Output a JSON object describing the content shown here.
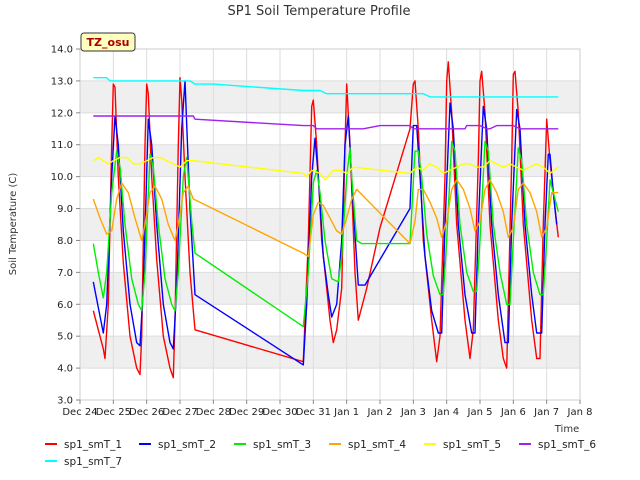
{
  "chart_data": {
    "type": "line",
    "title": "SP1 Soil Temperature Profile",
    "xlabel": "Time",
    "ylabel": "Soil Temperature (C)",
    "badge": "TZ_osu",
    "ylim": [
      3.0,
      14.0
    ],
    "yticks": [
      3.0,
      4.0,
      5.0,
      6.0,
      7.0,
      8.0,
      9.0,
      10.0,
      11.0,
      12.0,
      13.0,
      14.0
    ],
    "ytick_labels": [
      "3.0",
      "4.0",
      "5.0",
      "6.0",
      "7.0",
      "8.0",
      "9.0",
      "10.0",
      "11.0",
      "12.0",
      "13.0",
      "14.0"
    ],
    "xlim": [
      0,
      15
    ],
    "xticks": [
      0,
      1,
      2,
      3,
      4,
      5,
      6,
      7,
      8,
      9,
      10,
      11,
      12,
      13,
      14,
      15
    ],
    "xtick_labels": [
      "Dec 24",
      "Dec 25",
      "Dec 26",
      "Dec 27",
      "Dec 28",
      "Dec 29",
      "Dec 30",
      "Dec 31",
      "Jan 1",
      "Jan 2",
      "Jan 3",
      "Jan 4",
      "Jan 5",
      "Jan 6",
      "Jan 7",
      "Jan 8"
    ],
    "grid": true,
    "legend_position": "bottom",
    "series": [
      {
        "name": "sp1_smT_1",
        "color": "#ff0000",
        "x": [
          0.4,
          0.55,
          0.7,
          0.75,
          0.85,
          0.95,
          1.0,
          1.05,
          1.15,
          1.3,
          1.5,
          1.7,
          1.8,
          1.85,
          1.95,
          2.0,
          2.05,
          2.15,
          2.3,
          2.5,
          2.7,
          2.8,
          2.85,
          2.95,
          3.0,
          3.05,
          3.15,
          3.3,
          3.45,
          6.7,
          6.85,
          6.95,
          7.0,
          7.1,
          7.25,
          7.4,
          7.5,
          7.6,
          7.7,
          7.85,
          7.95,
          8.0,
          8.1,
          8.25,
          8.35,
          8.6,
          9.0,
          9.9,
          10.0,
          10.05,
          10.15,
          10.3,
          10.55,
          10.7,
          10.8,
          10.95,
          11.0,
          11.05,
          11.15,
          11.3,
          11.55,
          11.7,
          11.8,
          11.95,
          12.0,
          12.05,
          12.15,
          12.3,
          12.55,
          12.7,
          12.8,
          12.95,
          13.0,
          13.05,
          13.15,
          13.3,
          13.55,
          13.7,
          13.8,
          13.9,
          14.0,
          14.1,
          14.25,
          14.35
        ],
        "y": [
          5.8,
          5.2,
          4.6,
          4.3,
          6.0,
          11.0,
          12.9,
          12.8,
          10.0,
          7.3,
          5.0,
          4.0,
          3.8,
          5.0,
          11.0,
          12.9,
          12.6,
          10.0,
          7.4,
          5.0,
          4.0,
          3.7,
          5.5,
          11.0,
          13.1,
          12.4,
          10.0,
          7.0,
          5.2,
          4.2,
          8.0,
          12.2,
          12.4,
          11.0,
          8.0,
          6.5,
          5.5,
          4.8,
          5.2,
          6.5,
          11.0,
          12.9,
          11.0,
          7.0,
          5.5,
          6.5,
          8.4,
          11.5,
          12.9,
          13.0,
          11.5,
          8.0,
          5.5,
          4.2,
          5.0,
          10.0,
          13.0,
          13.6,
          12.0,
          8.5,
          5.5,
          4.3,
          5.2,
          10.5,
          13.0,
          13.3,
          12.0,
          8.5,
          5.5,
          4.3,
          4.0,
          10.5,
          13.2,
          13.3,
          12.0,
          8.5,
          5.5,
          4.3,
          4.3,
          8.5,
          11.8,
          10.5,
          9.0,
          8.1
        ]
      },
      {
        "name": "sp1_smT_2",
        "color": "#0000ff",
        "x": [
          0.4,
          0.55,
          0.7,
          0.8,
          0.95,
          1.05,
          1.15,
          1.3,
          1.5,
          1.7,
          1.8,
          1.9,
          2.05,
          2.15,
          2.3,
          2.5,
          2.7,
          2.8,
          2.9,
          3.05,
          3.15,
          3.3,
          3.45,
          6.7,
          6.8,
          6.95,
          7.05,
          7.15,
          7.3,
          7.45,
          7.55,
          7.7,
          7.85,
          7.95,
          8.05,
          8.2,
          8.35,
          8.55,
          9.9,
          10.0,
          10.1,
          10.2,
          10.35,
          10.55,
          10.75,
          10.85,
          10.95,
          11.1,
          11.2,
          11.35,
          11.55,
          11.75,
          11.85,
          11.95,
          12.1,
          12.2,
          12.35,
          12.55,
          12.75,
          12.85,
          12.95,
          13.1,
          13.2,
          13.35,
          13.55,
          13.7,
          13.85,
          13.95,
          14.05,
          14.1,
          14.2,
          14.3
        ],
        "y": [
          6.7,
          5.9,
          5.1,
          6.0,
          10.0,
          11.9,
          11.0,
          8.3,
          6.0,
          4.8,
          4.7,
          6.5,
          11.8,
          11.0,
          8.5,
          6.0,
          4.8,
          4.6,
          6.5,
          11.5,
          13.0,
          9.0,
          6.3,
          4.1,
          6.0,
          10.0,
          11.2,
          10.0,
          7.5,
          6.3,
          5.6,
          6.0,
          8.0,
          11.0,
          11.9,
          9.0,
          6.6,
          6.6,
          9.0,
          11.6,
          11.6,
          10.0,
          7.5,
          5.8,
          5.1,
          5.1,
          8.5,
          12.3,
          11.5,
          8.5,
          6.3,
          5.1,
          5.1,
          8.5,
          12.2,
          11.5,
          8.5,
          6.3,
          4.8,
          4.8,
          8.5,
          12.1,
          11.5,
          8.5,
          6.3,
          5.1,
          5.1,
          8.5,
          10.7,
          10.7,
          9.5,
          8.5
        ]
      },
      {
        "name": "sp1_smT_3",
        "color": "#00ee00",
        "x": [
          0.4,
          0.55,
          0.7,
          0.8,
          0.95,
          1.1,
          1.2,
          1.35,
          1.55,
          1.75,
          1.85,
          1.95,
          2.1,
          2.2,
          2.35,
          2.55,
          2.75,
          2.85,
          2.95,
          3.1,
          3.2,
          3.35,
          3.45,
          6.7,
          6.85,
          7.0,
          7.1,
          7.2,
          7.35,
          7.55,
          7.75,
          7.85,
          8.0,
          8.1,
          8.15,
          8.3,
          8.45,
          9.9,
          10.05,
          10.15,
          10.25,
          10.4,
          10.6,
          10.8,
          10.9,
          11.0,
          11.15,
          11.25,
          11.4,
          11.6,
          11.8,
          11.9,
          12.0,
          12.15,
          12.25,
          12.4,
          12.6,
          12.8,
          12.9,
          13.0,
          13.15,
          13.25,
          13.4,
          13.6,
          13.8,
          13.9,
          14.0,
          14.1,
          14.2,
          14.35
        ],
        "y": [
          7.9,
          7.0,
          6.2,
          7.0,
          9.5,
          10.8,
          10.3,
          8.5,
          6.8,
          6.0,
          5.8,
          7.0,
          10.7,
          10.3,
          8.5,
          6.8,
          6.0,
          5.8,
          7.0,
          10.0,
          10.6,
          8.6,
          7.6,
          5.3,
          7.0,
          9.8,
          10.2,
          9.5,
          8.0,
          6.8,
          6.7,
          7.5,
          10.0,
          10.9,
          10.0,
          8.0,
          7.9,
          7.9,
          10.8,
          10.8,
          10.0,
          8.2,
          6.9,
          6.3,
          6.3,
          8.0,
          11.1,
          10.8,
          8.5,
          7.0,
          6.4,
          6.4,
          8.0,
          11.1,
          10.8,
          8.5,
          7.0,
          6.0,
          6.0,
          8.0,
          10.9,
          10.5,
          8.5,
          7.0,
          6.3,
          6.3,
          8.0,
          9.9,
          9.5,
          8.9
        ]
      },
      {
        "name": "sp1_smT_4",
        "color": "#ffa500",
        "x": [
          0.4,
          0.6,
          0.8,
          0.95,
          1.1,
          1.25,
          1.45,
          1.65,
          1.85,
          1.95,
          2.1,
          2.25,
          2.45,
          2.65,
          2.85,
          2.95,
          3.1,
          3.25,
          3.4,
          6.7,
          6.85,
          7.0,
          7.15,
          7.3,
          7.5,
          7.7,
          7.85,
          8.0,
          8.15,
          8.3,
          9.9,
          10.05,
          10.15,
          10.3,
          10.5,
          10.7,
          10.85,
          11.0,
          11.15,
          11.3,
          11.5,
          11.7,
          11.85,
          12.0,
          12.15,
          12.3,
          12.5,
          12.7,
          12.85,
          13.0,
          13.15,
          13.3,
          13.5,
          13.7,
          13.85,
          14.0,
          14.15,
          14.35
        ],
        "y": [
          9.3,
          8.7,
          8.2,
          8.3,
          9.3,
          9.8,
          9.5,
          8.7,
          8.0,
          8.5,
          9.5,
          9.7,
          9.3,
          8.5,
          8.0,
          8.5,
          9.5,
          9.7,
          9.3,
          7.6,
          7.5,
          8.8,
          9.2,
          9.1,
          8.7,
          8.3,
          8.2,
          8.7,
          9.3,
          9.6,
          7.9,
          8.6,
          9.6,
          9.6,
          9.2,
          8.7,
          8.1,
          8.6,
          9.6,
          9.9,
          9.6,
          9.0,
          8.3,
          8.6,
          9.6,
          9.9,
          9.5,
          8.9,
          8.1,
          8.4,
          9.6,
          9.8,
          9.5,
          8.9,
          8.1,
          8.4,
          9.5,
          9.5
        ]
      },
      {
        "name": "sp1_smT_5",
        "color": "#ffff00",
        "x": [
          0.4,
          0.55,
          0.7,
          0.85,
          1.0,
          1.2,
          1.4,
          1.6,
          1.8,
          2.0,
          2.2,
          2.4,
          2.6,
          2.8,
          3.0,
          3.2,
          3.4,
          6.7,
          6.8,
          6.95,
          7.2,
          7.35,
          7.6,
          7.8,
          8.0,
          8.2,
          9.9,
          10.1,
          10.3,
          10.5,
          10.7,
          10.9,
          11.1,
          11.3,
          11.5,
          11.7,
          11.9,
          12.1,
          12.3,
          12.5,
          12.7,
          12.9,
          13.1,
          13.3,
          13.5,
          13.7,
          13.9,
          14.1,
          14.35
        ],
        "y": [
          10.5,
          10.6,
          10.5,
          10.4,
          10.5,
          10.6,
          10.6,
          10.4,
          10.4,
          10.5,
          10.6,
          10.6,
          10.5,
          10.4,
          10.3,
          10.5,
          10.5,
          10.1,
          10.0,
          10.2,
          10.1,
          9.9,
          10.2,
          10.2,
          10.1,
          10.3,
          10.1,
          10.3,
          10.2,
          10.4,
          10.3,
          10.1,
          10.2,
          10.3,
          10.4,
          10.4,
          10.3,
          10.3,
          10.5,
          10.4,
          10.3,
          10.4,
          10.3,
          10.2,
          10.3,
          10.4,
          10.3,
          10.1,
          10.3
        ]
      },
      {
        "name": "sp1_smT_6",
        "color": "#a020f0",
        "x": [
          0.4,
          1.5,
          2.5,
          3.4,
          3.45,
          6.7,
          7.0,
          7.1,
          7.2,
          8.0,
          8.5,
          9.0,
          9.9,
          10.0,
          10.2,
          10.5,
          10.9,
          11.3,
          11.55,
          11.6,
          11.8,
          12.0,
          12.2,
          12.3,
          12.5,
          12.8,
          13.0,
          13.2,
          13.5,
          13.7,
          13.9,
          14.1,
          14.35
        ],
        "y": [
          11.9,
          11.9,
          11.9,
          11.9,
          11.8,
          11.6,
          11.6,
          11.5,
          11.5,
          11.5,
          11.5,
          11.6,
          11.6,
          11.5,
          11.5,
          11.5,
          11.5,
          11.5,
          11.5,
          11.6,
          11.6,
          11.6,
          11.5,
          11.5,
          11.6,
          11.6,
          11.6,
          11.5,
          11.5,
          11.5,
          11.5,
          11.5,
          11.5
        ]
      },
      {
        "name": "sp1_smT_7",
        "color": "#00ffff",
        "x": [
          0.4,
          0.8,
          0.9,
          1.5,
          2.5,
          3.3,
          3.45,
          4.0,
          6.7,
          7.0,
          7.2,
          7.4,
          8.0,
          9.0,
          9.9,
          10.3,
          10.5,
          10.7,
          11.0,
          12.0,
          13.0,
          14.35
        ],
        "y": [
          13.1,
          13.1,
          13.0,
          13.0,
          13.0,
          13.0,
          12.9,
          12.9,
          12.7,
          12.7,
          12.7,
          12.6,
          12.6,
          12.6,
          12.6,
          12.6,
          12.5,
          12.5,
          12.5,
          12.5,
          12.5,
          12.5
        ]
      }
    ]
  }
}
